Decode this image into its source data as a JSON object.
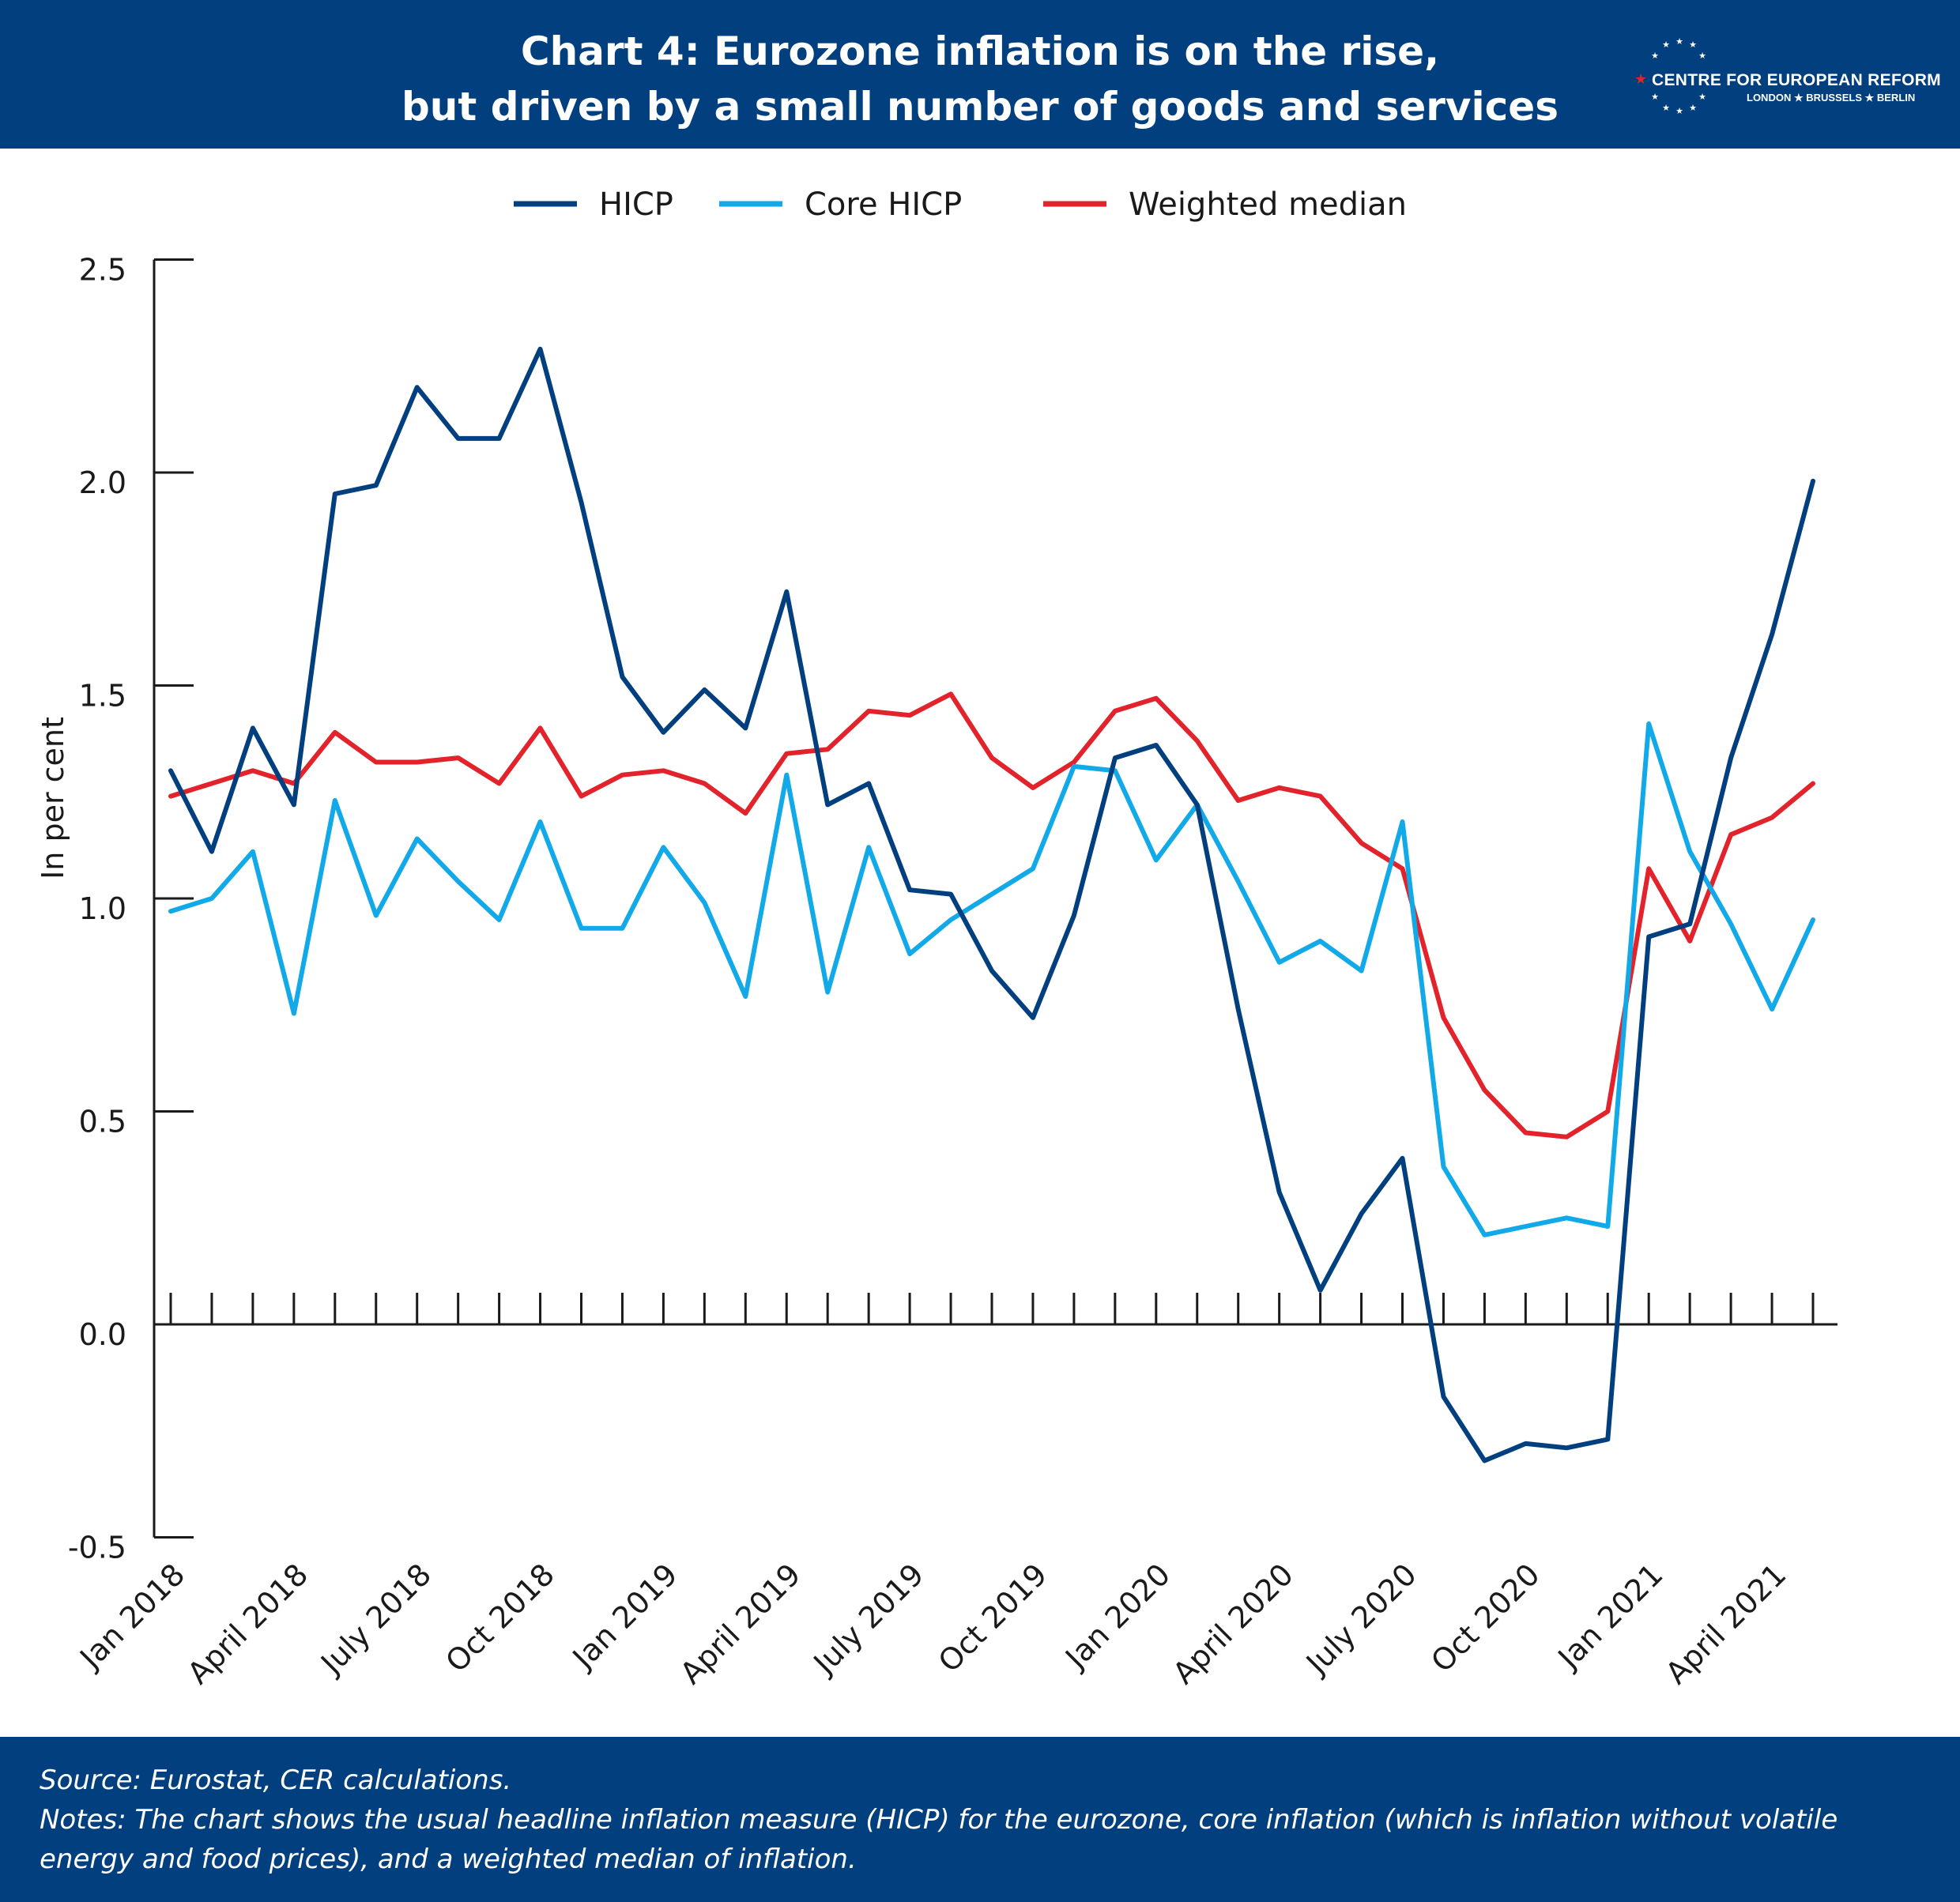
{
  "header": {
    "title_line1": "Chart 4: Eurozone inflation is on the rise,",
    "title_line2": "but driven by a small number of goods and services",
    "logo_name": "CENTRE FOR EUROPEAN REFORM",
    "logo_cities": "LONDON ★ BRUSSELS ★ BERLIN"
  },
  "footer": {
    "source": "Source: Eurostat, CER calculations.",
    "notes": "Notes: The chart shows the usual headline inflation measure (HICP) for the eurozone, core inflation (which is inflation without volatile energy and food prices), and a weighted median of inflation."
  },
  "colors": {
    "header_bg": "#013f7e",
    "hicp": "#013f7e",
    "core": "#11a9e8",
    "median": "#e3232b"
  },
  "chart_data": {
    "type": "line",
    "ylabel": "In per cent",
    "ylim": [
      -0.5,
      2.5
    ],
    "yticks": [
      "2.5",
      "2.0",
      "1.5",
      "1.0",
      "0.5",
      "0.0",
      "-0.5"
    ],
    "ytick_values": [
      2.5,
      2.0,
      1.5,
      1.0,
      0.5,
      0.0,
      -0.5
    ],
    "x": [
      "Jan 2018",
      "Feb 2018",
      "Mar 2018",
      "Apr 2018",
      "May 2018",
      "Jun 2018",
      "Jul 2018",
      "Aug 2018",
      "Sep 2018",
      "Oct 2018",
      "Nov 2018",
      "Dec 2018",
      "Jan 2019",
      "Feb 2019",
      "Mar 2019",
      "Apr 2019",
      "May 2019",
      "Jun 2019",
      "Jul 2019",
      "Aug 2019",
      "Sep 2019",
      "Oct 2019",
      "Nov 2019",
      "Dec 2019",
      "Jan 2020",
      "Feb 2020",
      "Mar 2020",
      "Apr 2020",
      "May 2020",
      "Jun 2020",
      "Jul 2020",
      "Aug 2020",
      "Sep 2020",
      "Oct 2020",
      "Nov 2020",
      "Dec 2020",
      "Jan 2021",
      "Feb 2021",
      "Mar 2021",
      "Apr 2021",
      "May 2021"
    ],
    "x_tick_labels": [
      "Jan 2018",
      "April 2018",
      "July 2018",
      "Oct 2018",
      "Jan 2019",
      "April 2019",
      "July 2019",
      "Oct 2019",
      "Jan 2020",
      "April 2020",
      "July 2020",
      "Oct 2020",
      "Jan 2021",
      "April 2021"
    ],
    "x_tick_label_indices": [
      0,
      3,
      6,
      9,
      12,
      15,
      18,
      21,
      24,
      27,
      30,
      33,
      36,
      39
    ],
    "legend_position": "top-center",
    "grid": false,
    "series": [
      {
        "name": "HICP",
        "color": "#013f7e",
        "values": [
          1.3,
          1.11,
          1.4,
          1.22,
          1.95,
          1.97,
          2.2,
          2.08,
          2.08,
          2.29,
          1.93,
          1.52,
          1.39,
          1.49,
          1.4,
          1.72,
          1.22,
          1.27,
          1.02,
          1.01,
          0.83,
          0.72,
          0.96,
          1.33,
          1.36,
          1.22,
          0.74,
          0.31,
          0.08,
          0.26,
          0.39,
          -0.17,
          -0.32,
          -0.28,
          -0.29,
          -0.27,
          0.91,
          0.94,
          1.33,
          1.62,
          1.98
        ]
      },
      {
        "name": "Core HICP",
        "color": "#11a9e8",
        "values": [
          0.97,
          1.0,
          1.11,
          0.73,
          1.23,
          0.96,
          1.14,
          1.04,
          0.95,
          1.18,
          0.93,
          0.93,
          1.12,
          0.99,
          0.77,
          1.29,
          0.78,
          1.12,
          0.87,
          0.95,
          1.01,
          1.07,
          1.31,
          1.3,
          1.09,
          1.22,
          1.04,
          0.85,
          0.9,
          0.83,
          1.18,
          0.37,
          0.21,
          0.23,
          0.25,
          0.23,
          1.41,
          1.11,
          0.94,
          0.74,
          0.95
        ]
      },
      {
        "name": "Weighted median",
        "color": "#e3232b",
        "values": [
          1.24,
          1.27,
          1.3,
          1.27,
          1.39,
          1.32,
          1.32,
          1.33,
          1.27,
          1.4,
          1.24,
          1.29,
          1.3,
          1.27,
          1.2,
          1.34,
          1.35,
          1.44,
          1.43,
          1.48,
          1.33,
          1.26,
          1.32,
          1.44,
          1.47,
          1.37,
          1.23,
          1.26,
          1.24,
          1.13,
          1.07,
          0.72,
          0.55,
          0.45,
          0.44,
          0.5,
          1.07,
          0.9,
          1.15,
          1.19,
          1.27
        ]
      }
    ]
  }
}
